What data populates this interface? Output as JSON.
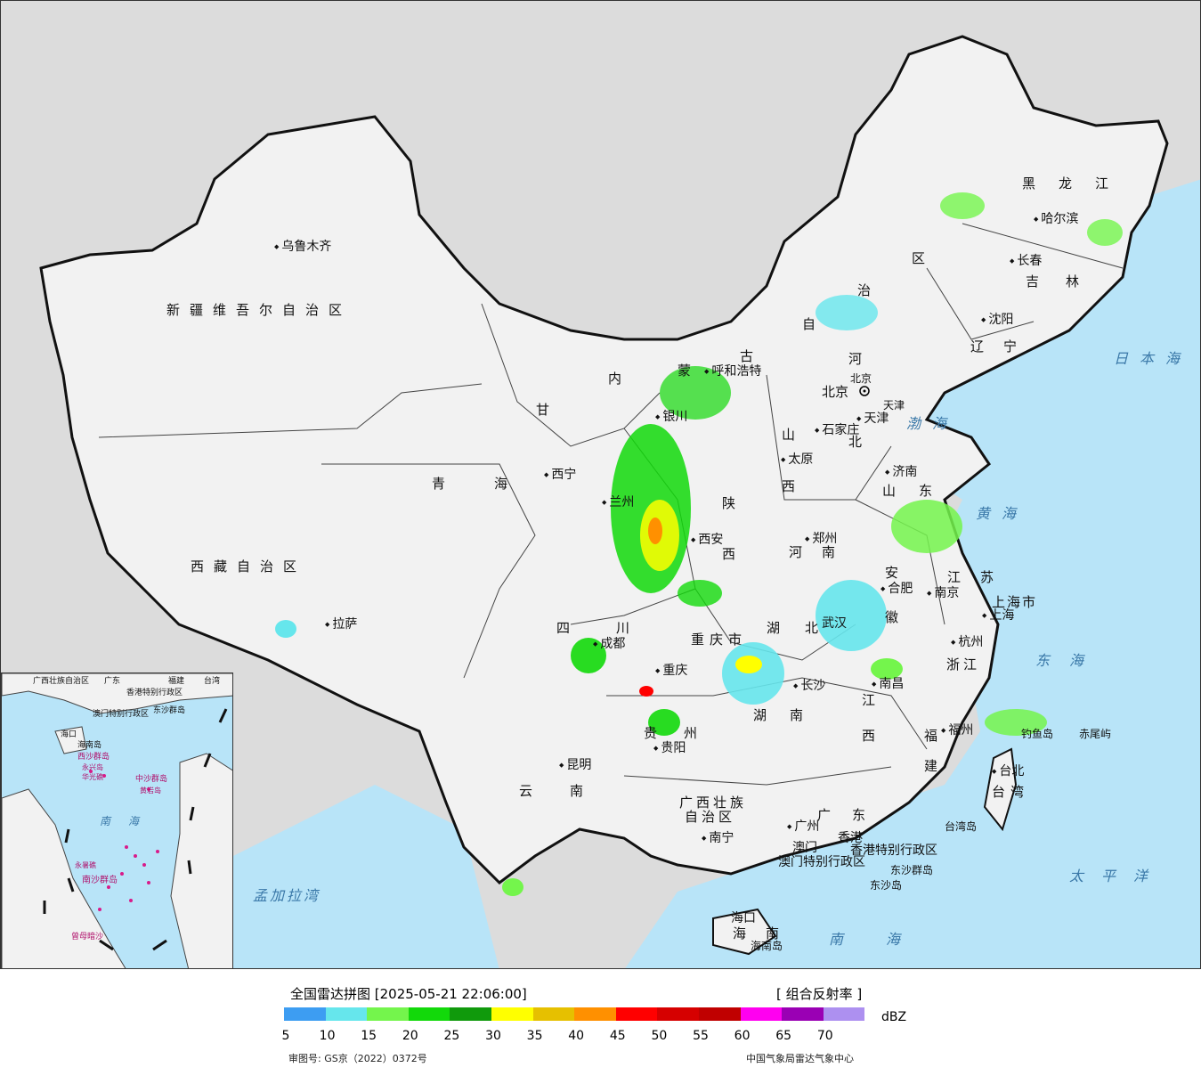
{
  "map": {
    "provinces": [
      "新疆维吾尔自治区",
      "西藏自治区",
      "青海",
      "甘",
      "内",
      "蒙",
      "古",
      "自",
      "治",
      "区",
      "黑龙江",
      "吉林",
      "辽宁",
      "河",
      "北",
      "山",
      "西",
      "陕",
      "西",
      "四川",
      "重庆市",
      "贵州",
      "云南",
      "广西壮族",
      "自治区",
      "广东",
      "湖",
      "南",
      "湖北",
      "河南",
      "安",
      "徽",
      "江苏",
      "山东",
      "浙江",
      "江",
      "西",
      "福",
      "建",
      "台湾",
      "海南",
      "上海市",
      "天津",
      "北京"
    ],
    "cities": [
      "乌鲁木齐",
      "拉萨",
      "西宁",
      "兰州",
      "银川",
      "呼和浩特",
      "北京",
      "天津",
      "石家庄",
      "太原",
      "济南",
      "郑州",
      "西安",
      "沈阳",
      "长春",
      "哈尔滨",
      "成都",
      "重庆",
      "贵阳",
      "昆明",
      "南宁",
      "广州",
      "澳门",
      "香港",
      "长沙",
      "武汉",
      "南昌",
      "合肥",
      "南京",
      "上海",
      "杭州",
      "福州",
      "台北",
      "海口"
    ],
    "special": [
      "香港特别行政区",
      "澳门特别行政区",
      "东沙群岛",
      "东沙岛",
      "海南岛",
      "台湾岛",
      "钓鱼岛",
      "赤尾屿"
    ],
    "seas": [
      "日本海",
      "渤海",
      "黄海",
      "东海",
      "太平洋",
      "南海",
      "孟加拉湾"
    ],
    "inset_labels": [
      "广西壮族自治区",
      "广东",
      "福建",
      "台湾",
      "香港特别行政区",
      "澳门特别行政区",
      "东沙群岛",
      "海口",
      "海南岛",
      "西沙群岛",
      "中沙群岛",
      "南海",
      "南沙群岛",
      "曾母暗沙",
      "永暑礁",
      "黄岩岛",
      "永兴岛",
      "华光礁"
    ]
  },
  "legend": {
    "title": "全国雷达拼图 [2025-05-21 22:06:00]",
    "product": "[ 组合反射率 ]",
    "unit": "dBZ",
    "ticks": [
      "5",
      "10",
      "15",
      "20",
      "25",
      "30",
      "35",
      "40",
      "45",
      "50",
      "55",
      "60",
      "65",
      "70"
    ],
    "colors": [
      "#3d9df2",
      "#66e6ec",
      "#74f54c",
      "#12d90a",
      "#109a0c",
      "#ffff00",
      "#e6c000",
      "#ff9000",
      "#ff0000",
      "#d60000",
      "#c00000",
      "#ff00f0",
      "#9a00b4",
      "#ad90f0"
    ],
    "approval": "审图号: GS京（2022）0372号",
    "source": "中国气象局雷达气象中心"
  }
}
